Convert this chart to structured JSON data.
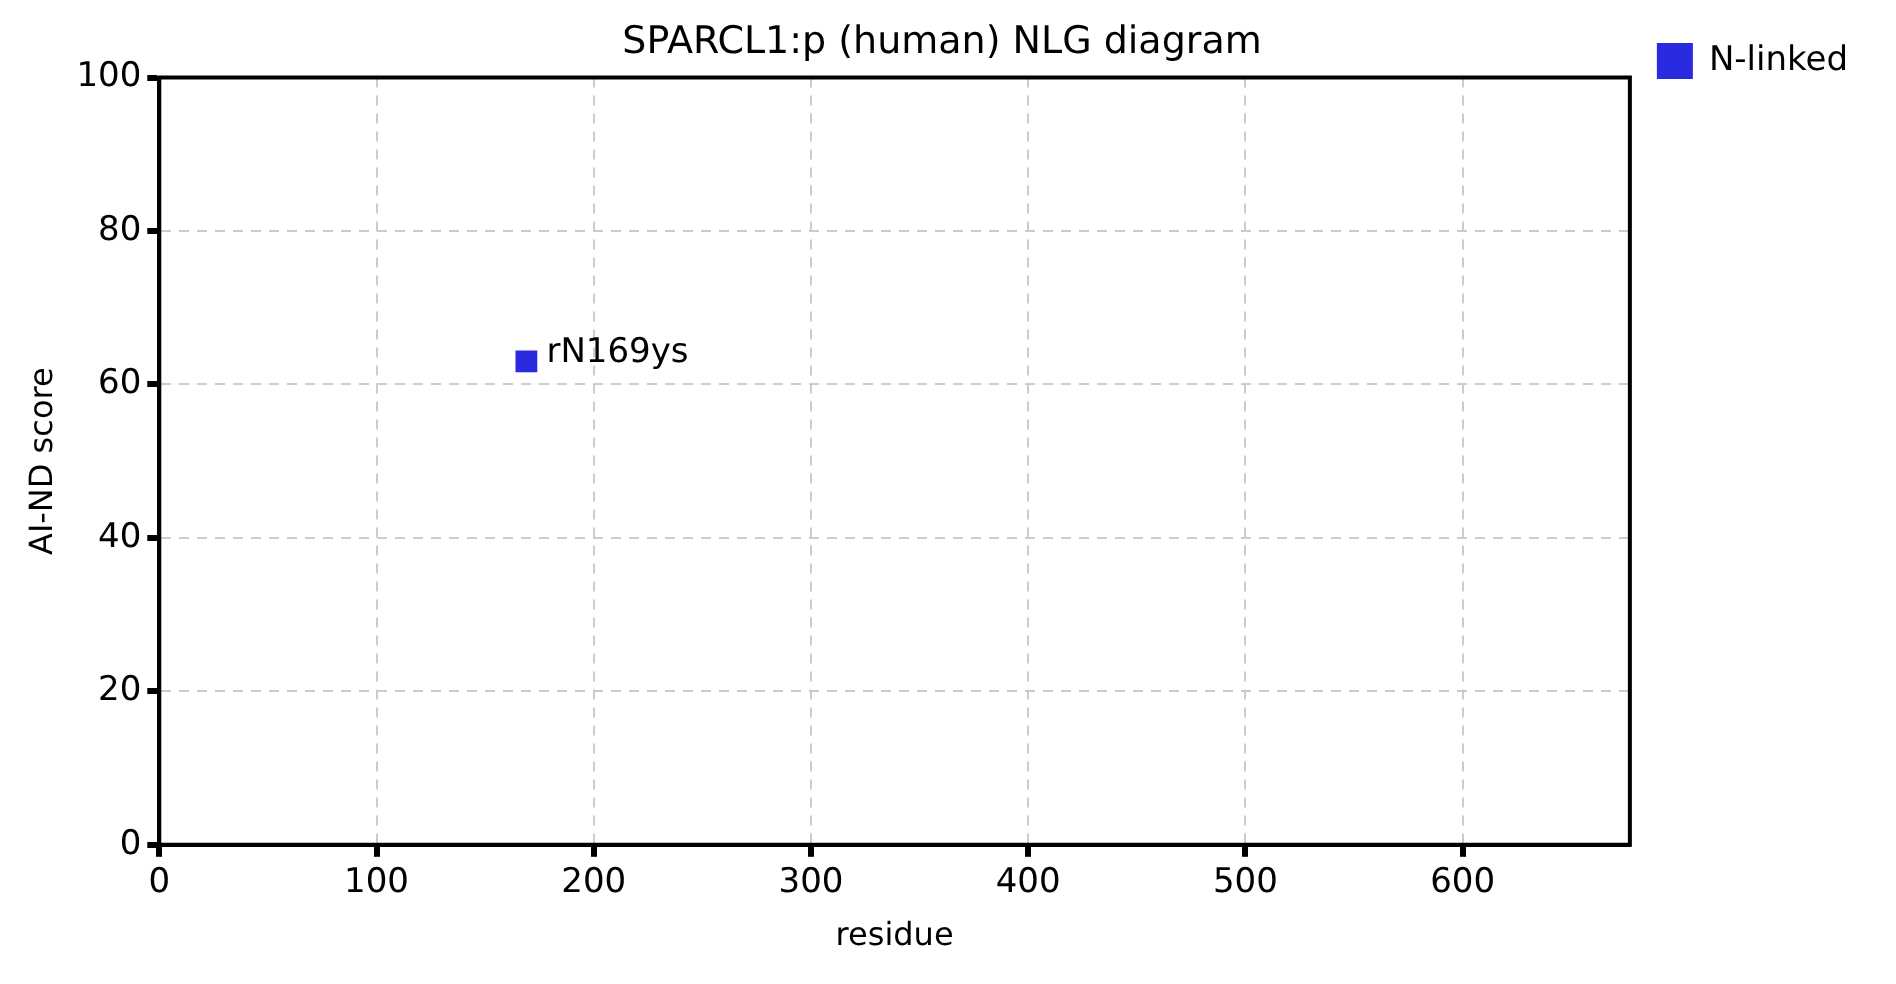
{
  "chart_data": {
    "type": "scatter",
    "title": "SPARCL1:p (human) NLG diagram",
    "xlabel": "residue",
    "ylabel": "AI-ND score",
    "series": [
      {
        "name": "N-linked",
        "color": "#2a2ae0",
        "x": [
          169
        ],
        "values": [
          63
        ]
      }
    ],
    "annotations": [
      {
        "text": "rN169ys",
        "x": 169,
        "y": 63
      }
    ],
    "xlim": [
      0,
      677
    ],
    "xticks": [
      0,
      100,
      200,
      300,
      400,
      500,
      600
    ],
    "ylim": [
      0,
      100
    ],
    "yticks": [
      0,
      20,
      40,
      60,
      80,
      100
    ],
    "grid": true,
    "legend": "top right",
    "marker": "square"
  }
}
